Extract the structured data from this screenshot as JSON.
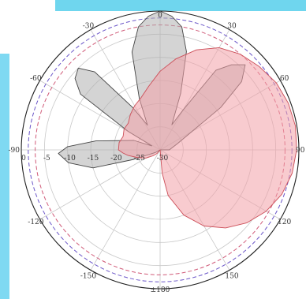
{
  "chart_data": {
    "type": "polar-area",
    "title": "",
    "angle_labels": [
      {
        "deg": 0,
        "label": "0"
      },
      {
        "deg": 30,
        "label": "30"
      },
      {
        "deg": 60,
        "label": "60"
      },
      {
        "deg": 90,
        "label": "90"
      },
      {
        "deg": 120,
        "label": "120"
      },
      {
        "deg": 150,
        "label": "150"
      },
      {
        "deg": 180,
        "label": "±180"
      },
      {
        "deg": -150,
        "label": "-150"
      },
      {
        "deg": -120,
        "label": "-120"
      },
      {
        "deg": -90,
        "label": "-90"
      },
      {
        "deg": -60,
        "label": "-60"
      },
      {
        "deg": -30,
        "label": "-30"
      }
    ],
    "radial_labels": [
      {
        "value": 0,
        "label": "0"
      },
      {
        "value": -5,
        "label": "-5"
      },
      {
        "value": -10,
        "label": "-10"
      },
      {
        "value": -15,
        "label": "-15"
      },
      {
        "value": -20,
        "label": "-20"
      },
      {
        "value": -25,
        "label": "-25"
      },
      {
        "value": -30,
        "label": "-30"
      }
    ],
    "r_range": [
      -30,
      0
    ],
    "grid": true,
    "reference_circles": [
      {
        "value": -1.5,
        "color": "#6a55c8",
        "style": "dashed"
      },
      {
        "value": -3,
        "color": "#d05a78",
        "style": "dashed"
      }
    ],
    "series": [
      {
        "color": "#b0b0b0",
        "points": [
          [
            -180,
            -30
          ],
          [
            -150,
            -30
          ],
          [
            -120,
            -29
          ],
          [
            -110,
            -24
          ],
          [
            -105,
            -15
          ],
          [
            -98,
            -10
          ],
          [
            -92,
            -8
          ],
          [
            -88,
            -10
          ],
          [
            -82,
            -16
          ],
          [
            -70,
            -24
          ],
          [
            -64,
            -28
          ],
          [
            -60,
            -22
          ],
          [
            -55,
            -9
          ],
          [
            -50,
            -6
          ],
          [
            -45,
            -5
          ],
          [
            -40,
            -8
          ],
          [
            -33,
            -19
          ],
          [
            -27,
            -24
          ],
          [
            -22,
            -18
          ],
          [
            -16,
            -8
          ],
          [
            -10,
            -3
          ],
          [
            -5,
            -1
          ],
          [
            0,
            0
          ],
          [
            5,
            -1
          ],
          [
            10,
            -3
          ],
          [
            15,
            -8
          ],
          [
            20,
            -17
          ],
          [
            25,
            -24
          ],
          [
            30,
            -20
          ],
          [
            35,
            -9
          ],
          [
            40,
            -6
          ],
          [
            45,
            -4
          ],
          [
            50,
            -7
          ],
          [
            55,
            -14
          ],
          [
            60,
            -22
          ],
          [
            70,
            -26
          ],
          [
            90,
            -28
          ],
          [
            120,
            -30
          ],
          [
            150,
            -30
          ],
          [
            180,
            -30
          ]
        ]
      },
      {
        "color": "#f2a0a8",
        "points": [
          [
            -180,
            -30
          ],
          [
            -160,
            -30
          ],
          [
            -140,
            -29
          ],
          [
            -130,
            -28
          ],
          [
            -120,
            -26.5
          ],
          [
            -110,
            -25
          ],
          [
            -100,
            -23
          ],
          [
            -95,
            -22
          ],
          [
            -90,
            -21
          ],
          [
            -80,
            -21
          ],
          [
            -70,
            -21.5
          ],
          [
            -60,
            -21
          ],
          [
            -50,
            -21
          ],
          [
            -40,
            -20
          ],
          [
            -30,
            -19
          ],
          [
            -20,
            -18
          ],
          [
            -10,
            -16
          ],
          [
            0,
            -13
          ],
          [
            10,
            -10
          ],
          [
            20,
            -7
          ],
          [
            30,
            -4.5
          ],
          [
            40,
            -3
          ],
          [
            50,
            -2
          ],
          [
            60,
            -1
          ],
          [
            70,
            -0.5
          ],
          [
            80,
            -0.3
          ],
          [
            90,
            -0.5
          ],
          [
            100,
            -1
          ],
          [
            110,
            -2
          ],
          [
            120,
            -3.5
          ],
          [
            130,
            -5.5
          ],
          [
            140,
            -8
          ],
          [
            150,
            -11
          ],
          [
            160,
            -15
          ],
          [
            170,
            -20
          ],
          [
            175,
            -25
          ],
          [
            180,
            -30
          ]
        ]
      }
    ]
  }
}
